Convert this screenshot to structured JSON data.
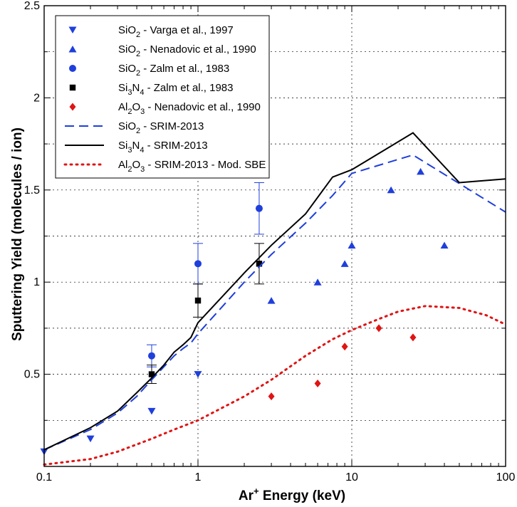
{
  "chart_data": {
    "type": "scatter",
    "title": "",
    "xlabel": "Ar",
    "xlabel_sup": "+",
    "xlabel_rest": " Energy (keV)",
    "ylabel": "Sputtering Yield (molecules / ion)",
    "xscale": "log",
    "xlim": [
      0.1,
      100
    ],
    "ylim": [
      0,
      2.5
    ],
    "grid": true,
    "legend_position": "top-left",
    "xticks": [
      {
        "value": 0.1,
        "label": "0.1"
      },
      {
        "value": 1,
        "label": "1"
      },
      {
        "value": 10,
        "label": "10"
      },
      {
        "value": 100,
        "label": "100"
      }
    ],
    "yticks": [
      {
        "value": 0.5,
        "label": "0.5"
      },
      {
        "value": 1,
        "label": "1"
      },
      {
        "value": 1.5,
        "label": "1.5"
      },
      {
        "value": 2,
        "label": "2"
      },
      {
        "value": 2.5,
        "label": "2.5"
      }
    ],
    "series": [
      {
        "name": "SiO2 - Varga et al., 1997",
        "label_parts": [
          [
            "SiO",
            ""
          ],
          [
            "2",
            "sub"
          ],
          [
            " - Varga et al., 1997",
            ""
          ]
        ],
        "kind": "marker",
        "marker": "triangle-down",
        "color": "#1f3fdc",
        "x": [
          0.1,
          0.2,
          0.5,
          1.0
        ],
        "y": [
          0.08,
          0.15,
          0.3,
          0.5
        ]
      },
      {
        "name": "SiO2 - Nenadovic et al., 1990",
        "label_parts": [
          [
            "SiO",
            ""
          ],
          [
            "2",
            "sub"
          ],
          [
            " - Nenadovic et al., 1990",
            ""
          ]
        ],
        "kind": "marker",
        "marker": "triangle-up",
        "color": "#1f3fdc",
        "x": [
          3,
          6,
          9,
          10,
          18,
          28,
          40
        ],
        "y": [
          0.9,
          1.0,
          1.1,
          1.2,
          1.5,
          1.6,
          1.2
        ]
      },
      {
        "name": "SiO2 - Zalm et al., 1983",
        "label_parts": [
          [
            "SiO",
            ""
          ],
          [
            "2",
            "sub"
          ],
          [
            " - Zalm et al., 1983",
            ""
          ]
        ],
        "kind": "marker",
        "marker": "circle",
        "color": "#1f3fdc",
        "x": [
          0.5,
          1.0,
          2.5
        ],
        "y": [
          0.6,
          1.1,
          1.4
        ],
        "err": [
          0.06,
          0.11,
          0.14
        ]
      },
      {
        "name": "Si3N4 - Zalm et al., 1983",
        "label_parts": [
          [
            "Si",
            ""
          ],
          [
            "3",
            "sub"
          ],
          [
            "N",
            ""
          ],
          [
            "4",
            "sub"
          ],
          [
            " - Zalm et al., 1983",
            ""
          ]
        ],
        "kind": "marker",
        "marker": "square",
        "color": "#000000",
        "x": [
          0.5,
          1.0,
          2.5
        ],
        "y": [
          0.5,
          0.9,
          1.1
        ],
        "err": [
          0.05,
          0.09,
          0.11
        ]
      },
      {
        "name": "Al2O3 - Nenadovic et al., 1990",
        "label_parts": [
          [
            "Al",
            ""
          ],
          [
            "2",
            "sub"
          ],
          [
            "O",
            ""
          ],
          [
            "3",
            "sub"
          ],
          [
            " - Nenadovic et al., 1990",
            ""
          ]
        ],
        "kind": "marker",
        "marker": "diamond",
        "color": "#e01414",
        "x": [
          3,
          6,
          9,
          15,
          25
        ],
        "y": [
          0.38,
          0.45,
          0.65,
          0.75,
          0.7
        ]
      },
      {
        "name": "SiO2 - SRIM-2013",
        "label_parts": [
          [
            "SiO",
            ""
          ],
          [
            "2",
            "sub"
          ],
          [
            " - SRIM-2013",
            ""
          ]
        ],
        "kind": "line",
        "dash": "dashed",
        "color": "#1f3fdc",
        "x": [
          0.1,
          0.2,
          0.3,
          0.4,
          0.5,
          0.6,
          0.7,
          0.8,
          0.9,
          1.0,
          2.0,
          3.0,
          5.0,
          7.5,
          10,
          25,
          100
        ],
        "y": [
          0.09,
          0.2,
          0.29,
          0.38,
          0.47,
          0.54,
          0.6,
          0.64,
          0.67,
          0.72,
          1.0,
          1.15,
          1.32,
          1.47,
          1.59,
          1.69,
          1.38
        ]
      },
      {
        "name": "Si3N4 - SRIM-2013",
        "label_parts": [
          [
            "Si",
            ""
          ],
          [
            "3",
            "sub"
          ],
          [
            "N",
            ""
          ],
          [
            "4",
            "sub"
          ],
          [
            " - SRIM-2013",
            ""
          ]
        ],
        "kind": "line",
        "dash": "solid",
        "color": "#000000",
        "x": [
          0.1,
          0.2,
          0.3,
          0.4,
          0.5,
          0.6,
          0.7,
          0.8,
          0.9,
          1.0,
          2.0,
          3.0,
          5.0,
          7.5,
          10,
          25,
          50,
          100
        ],
        "y": [
          0.09,
          0.21,
          0.3,
          0.4,
          0.48,
          0.55,
          0.62,
          0.66,
          0.7,
          0.78,
          1.05,
          1.2,
          1.37,
          1.57,
          1.61,
          1.81,
          1.54,
          1.56
        ]
      },
      {
        "name": "Al2O3 - SRIM-2013 - Mod. SBE",
        "label_parts": [
          [
            "Al",
            ""
          ],
          [
            "2",
            "sub"
          ],
          [
            "O",
            ""
          ],
          [
            "3",
            "sub"
          ],
          [
            " - SRIM-2013 - Mod. SBE",
            ""
          ]
        ],
        "kind": "line",
        "dash": "dotted",
        "color": "#e01414",
        "x": [
          0.1,
          0.2,
          0.3,
          0.5,
          0.7,
          1.0,
          2.0,
          3.0,
          5.0,
          7.5,
          10,
          15,
          20,
          30,
          50,
          75,
          100
        ],
        "y": [
          0.01,
          0.04,
          0.08,
          0.15,
          0.2,
          0.25,
          0.38,
          0.47,
          0.6,
          0.69,
          0.74,
          0.8,
          0.84,
          0.87,
          0.86,
          0.82,
          0.77
        ]
      }
    ]
  }
}
